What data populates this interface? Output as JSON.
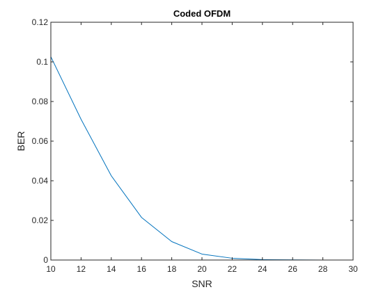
{
  "chart_data": {
    "type": "line",
    "title": "Coded OFDM",
    "xlabel": "SNR",
    "ylabel": "BER",
    "xlim": [
      10,
      30
    ],
    "ylim": [
      0,
      0.12
    ],
    "xticks": [
      10,
      12,
      14,
      16,
      18,
      20,
      22,
      24,
      26,
      28,
      30
    ],
    "yticks": [
      0,
      0.02,
      0.04,
      0.06,
      0.08,
      0.1,
      0.12
    ],
    "ytick_labels": [
      "0",
      "0.02",
      "0.04",
      "0.06",
      "0.08",
      "0.1",
      "0.12"
    ],
    "grid": false,
    "series": [
      {
        "color": "#0072BD",
        "x": [
          10,
          12,
          14,
          16,
          18,
          20,
          22,
          24,
          26,
          28,
          30
        ],
        "y": [
          0.1026,
          0.071,
          0.0425,
          0.0215,
          0.0093,
          0.003,
          0.0009,
          0.0002,
          0.0001,
          0.0,
          0.0
        ]
      }
    ]
  }
}
